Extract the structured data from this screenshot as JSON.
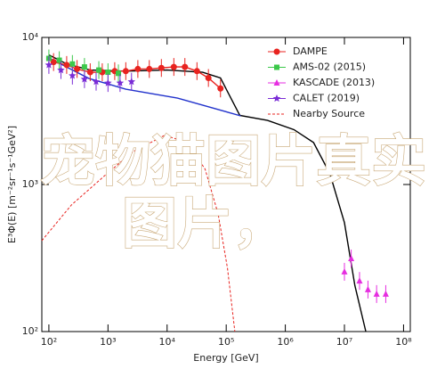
{
  "chart_data": {
    "type": "scatter",
    "x_label": "Energy [GeV]",
    "y_label": "E³Φ(E) [m⁻²sr⁻¹s⁻¹GeV²]",
    "xscale": "log",
    "yscale": "log",
    "xlim": [
      76,
      130000000
    ],
    "ylim": [
      100,
      10000
    ],
    "xticks": [
      {
        "value": 100,
        "label": "10²"
      },
      {
        "value": 1000,
        "label": "10³"
      },
      {
        "value": 10000,
        "label": "10⁴"
      },
      {
        "value": 100000,
        "label": "10⁵"
      },
      {
        "value": 1000000,
        "label": "10⁶"
      },
      {
        "value": 10000000,
        "label": "10⁷"
      },
      {
        "value": 100000000,
        "label": "10⁸"
      }
    ],
    "yticks": [
      {
        "value": 100,
        "label": "10²"
      },
      {
        "value": 1000,
        "label": "10³"
      },
      {
        "value": 10000,
        "label": "10⁴"
      }
    ],
    "legend": "upper right",
    "series": [
      {
        "name": "DAMPE",
        "color": "#e8231f",
        "marker": "circle",
        "x": [
          120,
          200,
          300,
          500,
          800,
          1300,
          2000,
          3200,
          5000,
          8000,
          13000,
          20000,
          32000,
          50000,
          80000
        ],
        "values": [
          6800,
          6500,
          6100,
          5800,
          5800,
          5900,
          5900,
          6100,
          6100,
          6200,
          6300,
          6300,
          5900,
          5300,
          4500
        ]
      },
      {
        "name": "AMS-02 (2015)",
        "color": "#3cc84a",
        "marker": "square",
        "x": [
          100,
          150,
          250,
          400,
          700,
          1000,
          1500
        ],
        "values": [
          7200,
          7000,
          6600,
          6300,
          6000,
          5800,
          5700
        ]
      },
      {
        "name": "KASCADE (2013)",
        "color": "#e62ee0",
        "marker": "triangle",
        "x": [
          10000000,
          13000000,
          18000000,
          25000000,
          35000000,
          50000000
        ],
        "values": [
          255,
          314,
          221,
          193,
          180,
          180
        ]
      },
      {
        "name": "CALET (2019)",
        "color": "#7a2cd6",
        "marker": "star",
        "x": [
          100,
          160,
          250,
          400,
          630,
          1000,
          1600,
          2500
        ],
        "values": [
          6500,
          6000,
          5500,
          5200,
          5000,
          4900,
          4900,
          5000
        ]
      },
      {
        "name": "Nearby Source",
        "color": "#e8231f",
        "marker": "dashed-line",
        "x": [
          76,
          240,
          950,
          2700,
          9100,
          22000,
          44000,
          73000,
          105000,
          140000
        ],
        "values": [
          415,
          725,
          1180,
          1680,
          2160,
          1930,
          1270,
          630,
          270,
          100
        ]
      }
    ],
    "lines": [
      {
        "color": "#000000",
        "x": [
          100,
          200,
          500,
          2000,
          10000,
          40000,
          80000,
          170000,
          500000,
          1400000,
          3000000,
          5700000,
          10000000,
          15000000,
          23000000
        ],
        "values": [
          7600,
          6600,
          6000,
          5900,
          6000,
          5800,
          5300,
          2950,
          2730,
          2360,
          1930,
          1180,
          550,
          206,
          100
        ]
      },
      {
        "color": "#2233cc",
        "x": [
          100,
          477,
          2000,
          15000,
          175000
        ],
        "values": [
          7250,
          5260,
          4450,
          3870,
          2930
        ]
      }
    ],
    "overlay_text": [
      "宠物猫图片真实",
      "图片，"
    ]
  }
}
